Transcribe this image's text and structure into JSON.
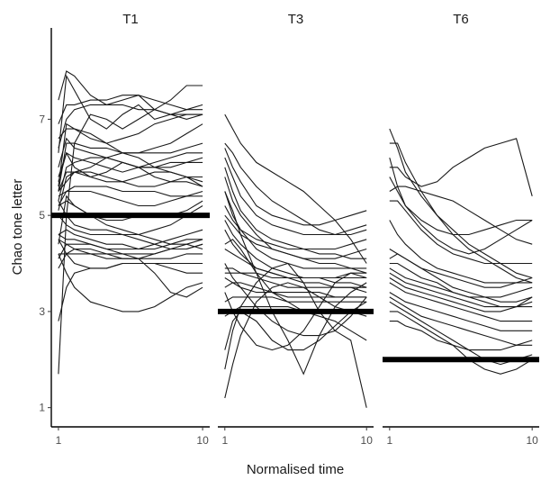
{
  "chart_data": {
    "type": "line",
    "xlabel": "Normalised time",
    "ylabel": "Chao tone letter",
    "xlim": [
      1,
      10
    ],
    "ylim": [
      0.6,
      8.9
    ],
    "x_ticks": [
      1,
      10
    ],
    "y_ticks": [
      1,
      3,
      5,
      7
    ],
    "grid": false,
    "legend": "none",
    "colors": {
      "contour": "#1a1a1a",
      "reference": "#000000"
    },
    "x": [
      1,
      1.5,
      2,
      3,
      4,
      5,
      6,
      7,
      8,
      9,
      10
    ],
    "panels": [
      {
        "title": "T1",
        "reference": 5,
        "series": [
          [
            1.7,
            5.0,
            6.5,
            7.1,
            7.0,
            6.8,
            7.0,
            7.2,
            7.4,
            7.7,
            7.7
          ],
          [
            7.4,
            8.0,
            7.9,
            7.5,
            7.3,
            7.3,
            7.2,
            7.2,
            7.1,
            7.1,
            7.1
          ],
          [
            6.3,
            7.9,
            7.6,
            7.0,
            6.8,
            7.1,
            7.3,
            7.0,
            7.1,
            7.2,
            7.3
          ],
          [
            6.9,
            7.3,
            7.3,
            7.4,
            7.4,
            7.5,
            7.5,
            7.2,
            7.1,
            7.0,
            7.1
          ],
          [
            6.4,
            7.0,
            7.2,
            7.3,
            7.3,
            7.4,
            7.5,
            7.4,
            7.3,
            7.2,
            7.2
          ],
          [
            5.6,
            6.9,
            6.8,
            6.6,
            6.5,
            6.6,
            6.7,
            6.9,
            7.0,
            7.1,
            7.1
          ],
          [
            6.6,
            6.8,
            6.8,
            6.7,
            6.5,
            6.3,
            6.3,
            6.4,
            6.5,
            6.7,
            6.9
          ],
          [
            5.5,
            6.5,
            6.5,
            6.4,
            6.4,
            6.3,
            6.3,
            6.3,
            6.3,
            6.4,
            6.5
          ],
          [
            6.0,
            6.6,
            6.4,
            6.3,
            6.2,
            6.1,
            6.0,
            6.0,
            6.1,
            6.1,
            6.2
          ],
          [
            5.7,
            6.3,
            6.2,
            6.1,
            6.0,
            5.9,
            6.0,
            6.1,
            6.2,
            6.3,
            6.3
          ],
          [
            5.3,
            6.0,
            6.1,
            6.2,
            6.2,
            6.1,
            6.0,
            6.0,
            6.0,
            6.1,
            6.1
          ],
          [
            5.5,
            5.7,
            5.9,
            6.0,
            6.2,
            6.3,
            6.2,
            6.0,
            5.9,
            5.8,
            5.7
          ],
          [
            5.8,
            6.3,
            6.0,
            5.8,
            5.9,
            6.1,
            6.0,
            5.8,
            5.7,
            5.8,
            5.8
          ],
          [
            5.5,
            5.9,
            5.9,
            5.8,
            5.7,
            5.7,
            5.8,
            5.9,
            5.9,
            5.8,
            5.6
          ],
          [
            5.1,
            5.8,
            5.9,
            5.9,
            5.8,
            5.7,
            5.6,
            5.6,
            5.7,
            5.7,
            5.6
          ],
          [
            5.2,
            5.5,
            5.6,
            5.6,
            5.6,
            5.5,
            5.5,
            5.5,
            5.4,
            5.4,
            5.4
          ],
          [
            5.4,
            5.5,
            5.5,
            5.5,
            5.4,
            5.3,
            5.2,
            5.2,
            5.3,
            5.4,
            5.5
          ],
          [
            4.4,
            5.4,
            5.2,
            5.0,
            4.9,
            4.9,
            5.0,
            5.0,
            5.0,
            5.1,
            5.3
          ],
          [
            5.2,
            5.3,
            5.2,
            5.0,
            4.8,
            4.7,
            4.6,
            4.7,
            4.8,
            5.0,
            5.2
          ],
          [
            5.3,
            5.0,
            4.8,
            4.7,
            4.7,
            4.6,
            4.5,
            4.4,
            4.3,
            4.3,
            4.4
          ],
          [
            5.0,
            4.8,
            4.7,
            4.6,
            4.6,
            4.6,
            4.6,
            4.5,
            4.4,
            4.4,
            4.3
          ],
          [
            4.6,
            4.7,
            4.6,
            4.5,
            4.4,
            4.4,
            4.3,
            4.4,
            4.5,
            4.6,
            4.7
          ],
          [
            4.6,
            4.5,
            4.5,
            4.4,
            4.3,
            4.3,
            4.3,
            4.3,
            4.4,
            4.5,
            4.5
          ],
          [
            4.1,
            4.4,
            4.4,
            4.4,
            4.3,
            4.2,
            4.2,
            4.2,
            4.3,
            4.3,
            4.4
          ],
          [
            4.2,
            4.2,
            4.3,
            4.3,
            4.2,
            4.1,
            4.1,
            4.2,
            4.3,
            4.4,
            4.5
          ],
          [
            3.9,
            4.2,
            4.2,
            4.2,
            4.1,
            4.1,
            4.1,
            4.1,
            4.1,
            4.2,
            4.2
          ],
          [
            4.5,
            4.2,
            4.0,
            3.9,
            3.9,
            4.0,
            4.0,
            4.0,
            4.0,
            4.0,
            4.0
          ],
          [
            2.8,
            3.5,
            3.8,
            3.9,
            3.9,
            4.0,
            4.0,
            4.0,
            3.9,
            3.8,
            3.8
          ],
          [
            4.2,
            3.8,
            3.5,
            3.2,
            3.1,
            3.0,
            3.0,
            3.1,
            3.3,
            3.5,
            3.6
          ],
          [
            4.5,
            4.4,
            4.3,
            4.2,
            4.2,
            4.2,
            4.1,
            3.8,
            3.4,
            3.3,
            3.5
          ]
        ]
      },
      {
        "title": "T3",
        "reference": 3,
        "series": [
          [
            7.1,
            6.8,
            6.5,
            6.1,
            5.9,
            5.7,
            5.5,
            5.2,
            4.9,
            4.5,
            4.0
          ],
          [
            6.5,
            6.3,
            6.0,
            5.6,
            5.3,
            5.1,
            4.9,
            4.7,
            4.6,
            4.6,
            4.7
          ],
          [
            6.4,
            6.0,
            5.7,
            5.2,
            5.0,
            4.9,
            4.8,
            4.8,
            4.9,
            5.0,
            5.1
          ],
          [
            6.2,
            5.8,
            5.4,
            5.0,
            4.8,
            4.7,
            4.6,
            4.6,
            4.6,
            4.7,
            4.8
          ],
          [
            6.0,
            5.5,
            5.1,
            4.7,
            4.5,
            4.4,
            4.3,
            4.3,
            4.3,
            4.4,
            4.5
          ],
          [
            5.8,
            5.3,
            5.0,
            4.6,
            4.3,
            4.2,
            4.1,
            4.1,
            4.1,
            4.2,
            4.3
          ],
          [
            5.5,
            5.0,
            4.7,
            4.3,
            4.1,
            4.0,
            3.9,
            3.9,
            3.9,
            3.9,
            3.9
          ],
          [
            5.2,
            4.9,
            4.7,
            4.5,
            4.4,
            4.3,
            4.3,
            4.2,
            4.2,
            4.1,
            4.1
          ],
          [
            5.0,
            4.8,
            4.6,
            4.4,
            4.3,
            4.2,
            4.1,
            4.0,
            4.0,
            3.9,
            3.8
          ],
          [
            4.9,
            4.6,
            4.4,
            4.1,
            3.9,
            3.8,
            3.7,
            3.7,
            3.6,
            3.6,
            3.5
          ],
          [
            4.7,
            4.4,
            4.2,
            3.9,
            3.8,
            3.7,
            3.6,
            3.6,
            3.5,
            3.5,
            3.4
          ],
          [
            4.3,
            4.2,
            4.1,
            3.9,
            3.8,
            3.7,
            3.7,
            3.7,
            3.7,
            3.7,
            3.7
          ],
          [
            3.9,
            3.9,
            3.8,
            3.8,
            3.7,
            3.7,
            3.7,
            3.7,
            3.7,
            3.8,
            3.8
          ],
          [
            3.8,
            3.8,
            3.8,
            3.7,
            3.6,
            3.5,
            3.5,
            3.5,
            3.5,
            3.5,
            3.5
          ],
          [
            3.5,
            3.6,
            3.6,
            3.5,
            3.4,
            3.4,
            3.4,
            3.4,
            3.3,
            3.3,
            3.3
          ],
          [
            3.2,
            3.3,
            3.3,
            3.3,
            3.3,
            3.2,
            3.2,
            3.2,
            3.2,
            3.2,
            3.2
          ],
          [
            2.9,
            3.0,
            3.1,
            3.1,
            3.1,
            3.1,
            3.0,
            3.0,
            3.0,
            3.0,
            2.9
          ],
          [
            1.8,
            2.6,
            3.1,
            3.6,
            3.9,
            4.0,
            3.6,
            3.0,
            2.6,
            2.9,
            3.3
          ],
          [
            1.2,
            1.9,
            2.5,
            3.2,
            3.5,
            3.6,
            3.5,
            3.3,
            3.1,
            3.0,
            3.0
          ],
          [
            3.4,
            3.0,
            2.7,
            2.3,
            2.2,
            2.3,
            2.6,
            3.1,
            3.6,
            3.8,
            3.7
          ],
          [
            2.2,
            2.8,
            3.0,
            2.8,
            2.4,
            2.2,
            2.2,
            2.4,
            2.7,
            3.0,
            3.2
          ],
          [
            4.0,
            3.7,
            3.5,
            3.1,
            2.8,
            2.6,
            2.5,
            2.5,
            2.6,
            2.4,
            1.0
          ],
          [
            5.5,
            5.1,
            4.6,
            3.8,
            3.0,
            2.4,
            1.7,
            2.5,
            3.1,
            3.4,
            3.6
          ],
          [
            4.4,
            4.5,
            4.3,
            3.8,
            3.4,
            3.2,
            3.0,
            2.9,
            2.8,
            2.6,
            2.4
          ],
          [
            3.7,
            3.6,
            3.5,
            3.4,
            3.4,
            3.3,
            3.3,
            3.3,
            3.3,
            3.3,
            3.3
          ]
        ]
      },
      {
        "title": "T6",
        "reference": 2,
        "series": [
          [
            6.8,
            6.4,
            5.9,
            5.4,
            5.0,
            4.7,
            4.4,
            4.2,
            4.0,
            3.8,
            3.7
          ],
          [
            6.5,
            6.5,
            6.1,
            5.5,
            5.0,
            4.6,
            4.3,
            4.1,
            3.9,
            3.7,
            3.6
          ],
          [
            6.0,
            6.0,
            5.8,
            5.6,
            5.7,
            6.0,
            6.2,
            6.4,
            6.5,
            6.6,
            5.4
          ],
          [
            6.2,
            5.6,
            5.2,
            4.8,
            4.5,
            4.3,
            4.2,
            4.3,
            4.5,
            4.7,
            4.9
          ],
          [
            5.8,
            5.5,
            5.2,
            4.9,
            4.7,
            4.6,
            4.6,
            4.7,
            4.8,
            4.9,
            4.9
          ],
          [
            5.5,
            5.6,
            5.6,
            5.5,
            5.4,
            5.3,
            5.1,
            4.9,
            4.7,
            4.5,
            4.4
          ],
          [
            5.3,
            5.3,
            5.1,
            4.7,
            4.4,
            4.2,
            4.1,
            4.0,
            4.0,
            4.0,
            4.0
          ],
          [
            4.9,
            4.6,
            4.4,
            4.1,
            3.9,
            3.8,
            3.7,
            3.6,
            3.6,
            3.6,
            3.6
          ],
          [
            4.3,
            4.2,
            4.1,
            3.9,
            3.8,
            3.7,
            3.6,
            3.5,
            3.5,
            3.6,
            3.7
          ],
          [
            4.1,
            4.2,
            4.1,
            3.9,
            3.7,
            3.5,
            3.4,
            3.3,
            3.2,
            3.2,
            3.3
          ],
          [
            4.0,
            4.0,
            3.9,
            3.7,
            3.6,
            3.4,
            3.3,
            3.2,
            3.1,
            3.1,
            3.2
          ],
          [
            3.9,
            3.8,
            3.7,
            3.6,
            3.5,
            3.4,
            3.3,
            3.3,
            3.3,
            3.4,
            3.5
          ],
          [
            3.8,
            3.7,
            3.6,
            3.5,
            3.4,
            3.3,
            3.2,
            3.1,
            3.1,
            3.1,
            3.1
          ],
          [
            3.7,
            3.6,
            3.5,
            3.4,
            3.3,
            3.2,
            3.1,
            3.0,
            3.0,
            3.1,
            3.3
          ],
          [
            3.6,
            3.5,
            3.4,
            3.3,
            3.2,
            3.1,
            3.0,
            2.9,
            2.8,
            2.8,
            2.8
          ],
          [
            3.4,
            3.3,
            3.2,
            3.1,
            3.0,
            2.9,
            2.8,
            2.7,
            2.6,
            2.6,
            2.6
          ],
          [
            3.3,
            3.2,
            3.1,
            2.9,
            2.8,
            2.7,
            2.6,
            2.5,
            2.4,
            2.3,
            2.3
          ],
          [
            3.2,
            3.1,
            3.0,
            2.8,
            2.6,
            2.4,
            2.2,
            2.0,
            1.9,
            2.0,
            2.1
          ],
          [
            3.0,
            3.0,
            2.9,
            2.7,
            2.5,
            2.3,
            2.0,
            1.8,
            1.7,
            1.8,
            2.0
          ],
          [
            2.8,
            2.8,
            2.7,
            2.6,
            2.4,
            2.3,
            2.2,
            2.2,
            2.2,
            2.3,
            2.4
          ]
        ]
      }
    ]
  }
}
